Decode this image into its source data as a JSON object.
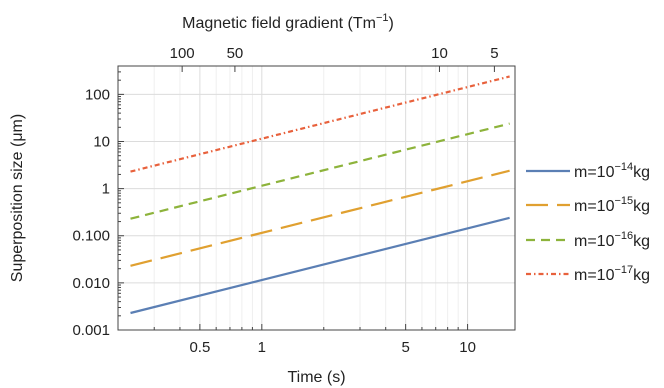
{
  "chart_data": {
    "type": "line",
    "log_x": true,
    "log_y": true,
    "grid": true,
    "xlim": [
      0.2,
      17
    ],
    "ylim": [
      0.001,
      400
    ],
    "xlabel": "Time (s)",
    "ylabel": "Superposition size (μm)",
    "top_axis_label": "Magnetic field gradient (Tm⁻¹)",
    "x_ticks": [
      {
        "value": 0.5,
        "label": "0.5"
      },
      {
        "value": 1,
        "label": "1"
      },
      {
        "value": 5,
        "label": "5"
      },
      {
        "value": 10,
        "label": "10"
      }
    ],
    "y_ticks": [
      {
        "value": 0.001,
        "label": "0.001"
      },
      {
        "value": 0.01,
        "label": "0.010"
      },
      {
        "value": 0.1,
        "label": "0.100"
      },
      {
        "value": 1,
        "label": "1"
      },
      {
        "value": 10,
        "label": "10"
      },
      {
        "value": 100,
        "label": "100"
      }
    ],
    "top_ticks": [
      {
        "label": "100",
        "time_position": 0.41
      },
      {
        "label": "50",
        "time_position": 0.74
      },
      {
        "label": "10",
        "time_position": 7.3
      },
      {
        "label": "5",
        "time_position": 13.5
      }
    ],
    "legend_position": "right",
    "series": [
      {
        "name": "m=10^-14kg",
        "color": "#5b7fb4",
        "dash": "solid",
        "x": [
          0.23,
          16
        ],
        "y": [
          0.0023,
          0.24
        ]
      },
      {
        "name": "m=10^-15kg",
        "color": "#e0a030",
        "dash": "long-dash",
        "x": [
          0.23,
          16
        ],
        "y": [
          0.023,
          2.4
        ]
      },
      {
        "name": "m=10^-16kg",
        "color": "#8db33b",
        "dash": "dash",
        "x": [
          0.23,
          16
        ],
        "y": [
          0.23,
          24
        ]
      },
      {
        "name": "m=10^-17kg",
        "color": "#e8613c",
        "dash": "dot-dash",
        "x": [
          0.23,
          16
        ],
        "y": [
          2.3,
          240
        ]
      }
    ],
    "legend_entries": [
      {
        "base": "m=10",
        "exponent": "−14",
        "unit": "kg"
      },
      {
        "base": "m=10",
        "exponent": "−15",
        "unit": "kg"
      },
      {
        "base": "m=10",
        "exponent": "−16",
        "unit": "kg"
      },
      {
        "base": "m=10",
        "exponent": "−17",
        "unit": "kg"
      }
    ]
  }
}
